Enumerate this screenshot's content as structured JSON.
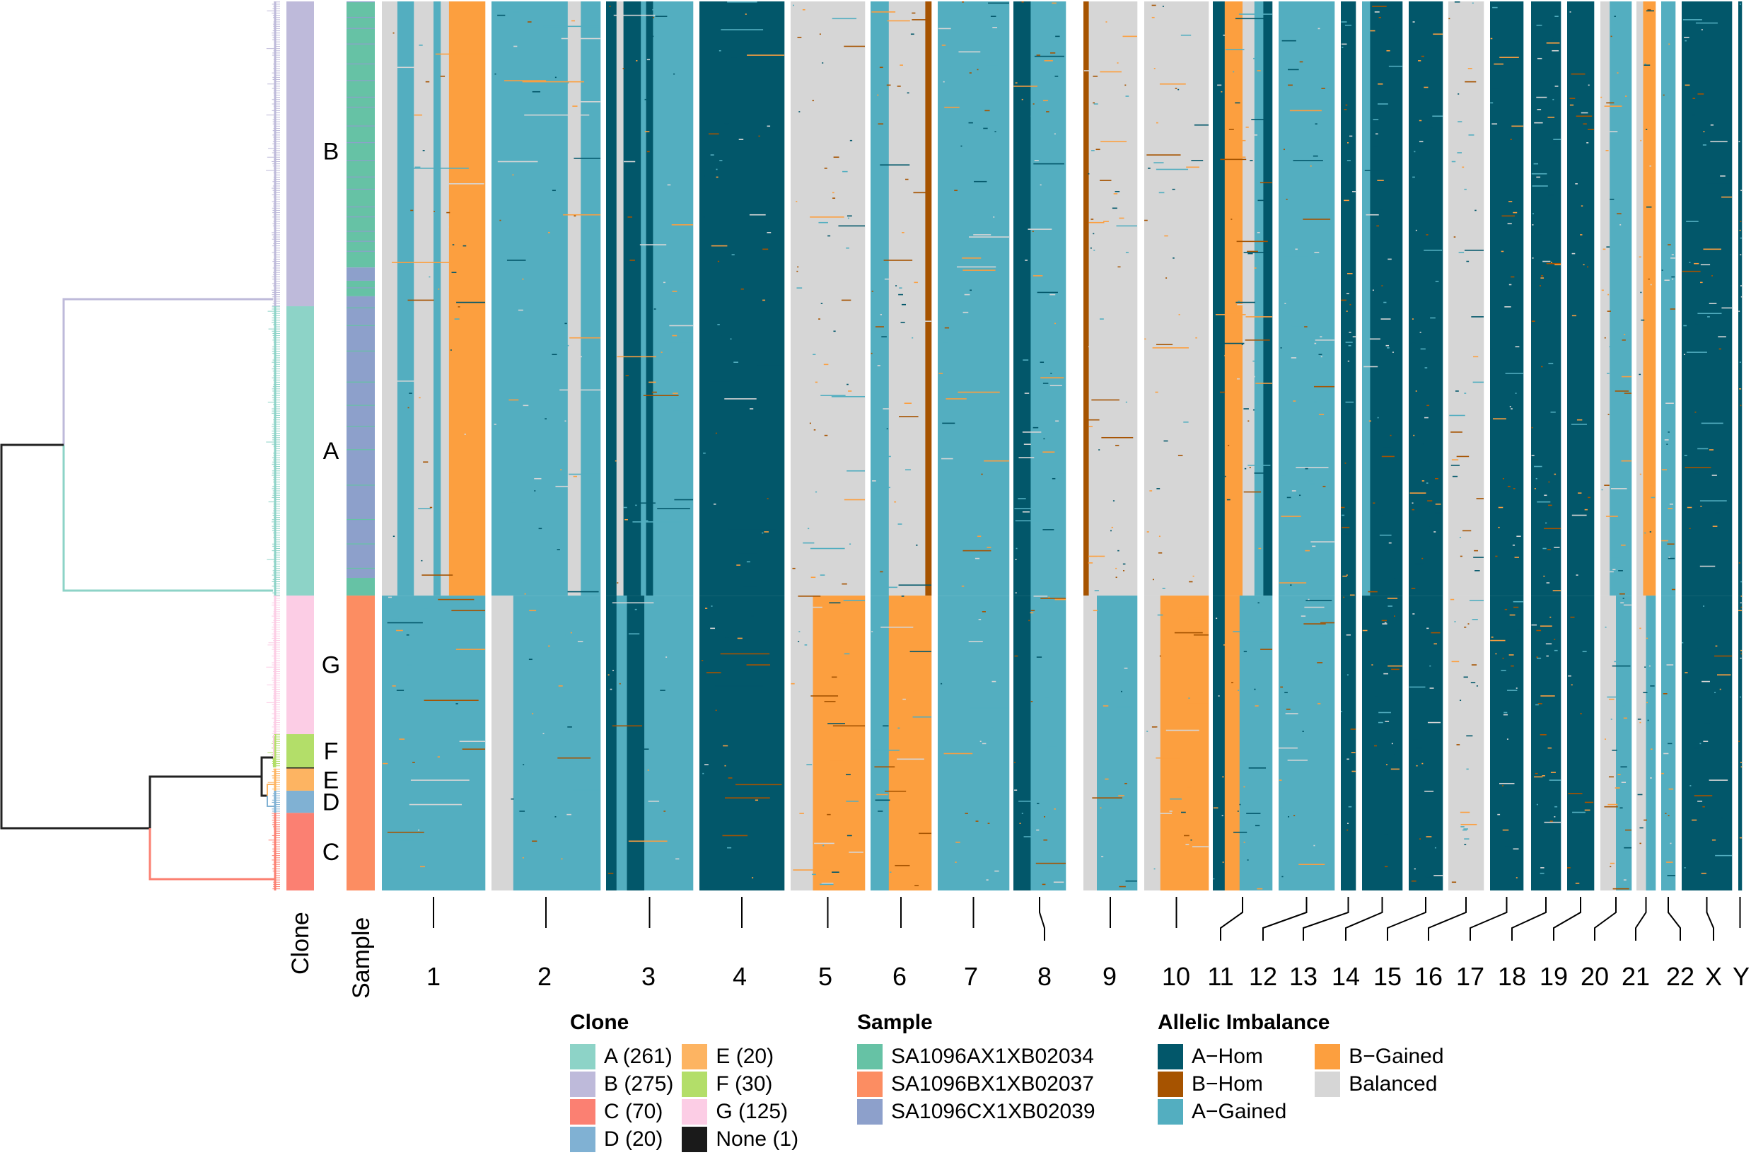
{
  "chart_data": {
    "type": "heatmap",
    "title": "",
    "xlabel": "",
    "ylabel": "",
    "row_annotation_labels": [
      "Clone",
      "Sample"
    ],
    "colors": {
      "A-Hom": "#02576A",
      "B-Hom": "#A65300",
      "A-Gained": "#53AEC0",
      "B-Gained": "#FC9F3F",
      "Balanced": "#D6D6D6"
    },
    "clones": [
      {
        "id": "B",
        "count": 275,
        "color": "#BEBADA",
        "rows": [
          0,
          275
        ]
      },
      {
        "id": "A",
        "count": 261,
        "color": "#8DD3C7",
        "rows": [
          275,
          536
        ]
      },
      {
        "id": "G",
        "count": 125,
        "color": "#FCCDE5",
        "rows": [
          536,
          661
        ]
      },
      {
        "id": "F",
        "count": 30,
        "color": "#B3DE69",
        "rows": [
          661,
          691
        ]
      },
      {
        "id": "None",
        "count": 1,
        "color": "#1A1A1A",
        "rows": [
          691,
          692
        ]
      },
      {
        "id": "E",
        "count": 20,
        "color": "#FDB462",
        "rows": [
          692,
          712
        ]
      },
      {
        "id": "D",
        "count": 20,
        "color": "#80B1D3",
        "rows": [
          712,
          732
        ]
      },
      {
        "id": "C",
        "count": 70,
        "color": "#FB8072",
        "rows": [
          732,
          802
        ]
      }
    ],
    "samples": [
      {
        "name": "SA1096AX1XB02034",
        "color": "#66C2A5"
      },
      {
        "name": "SA1096BX1XB02037",
        "color": "#FC8D62"
      },
      {
        "name": "SA1096CX1XB02039",
        "color": "#8DA0CB"
      }
    ],
    "sample_blocks": [
      {
        "rows": [
          0,
          240
        ],
        "sample": 0
      },
      {
        "rows": [
          240,
          252
        ],
        "sample": 2
      },
      {
        "rows": [
          252,
          266
        ],
        "sample": 0
      },
      {
        "rows": [
          266,
          520
        ],
        "sample": 2
      },
      {
        "rows": [
          520,
          536
        ],
        "sample": 0
      },
      {
        "rows": [
          536,
          802
        ],
        "sample": 1
      }
    ],
    "clone_label_rows": {
      "B": 135,
      "A": 405,
      "G": 598,
      "F": 676,
      "E": 702,
      "D": 722,
      "C": 767
    },
    "chromosomes": [
      "1",
      "2",
      "3",
      "4",
      "5",
      "6",
      "7",
      "8",
      "9",
      "10",
      "11",
      "12",
      "13",
      "14",
      "15",
      "16",
      "17",
      "18",
      "19",
      "20",
      "21",
      "22",
      "X",
      "Y"
    ],
    "chromosome_profiles": {
      "1": {
        "upper": [
          [
            "Balanced",
            0.15
          ],
          [
            "A-Gained",
            0.16
          ],
          [
            "Balanced",
            0.19
          ],
          [
            "A-Gained",
            0.07
          ],
          [
            "Balanced",
            0.08
          ],
          [
            "B-Gained",
            0.35
          ]
        ],
        "lower": [
          [
            "A-Gained",
            1.0
          ]
        ]
      },
      "2": {
        "upper": [
          [
            "A-Gained",
            0.7
          ],
          [
            "Balanced",
            0.12
          ],
          [
            "A-Gained",
            0.18
          ]
        ],
        "lower": [
          [
            "Balanced",
            0.2
          ],
          [
            "A-Gained",
            0.8
          ]
        ]
      },
      "3": {
        "upper": [
          [
            "A-Hom",
            0.12
          ],
          [
            "Balanced",
            0.08
          ],
          [
            "A-Hom",
            0.2
          ],
          [
            "A-Gained",
            0.06
          ],
          [
            "A-Hom",
            0.08
          ],
          [
            "A-Gained",
            0.46
          ]
        ],
        "lower": [
          [
            "A-Hom",
            0.12
          ],
          [
            "A-Gained",
            0.12
          ],
          [
            "A-Hom",
            0.2
          ],
          [
            "A-Gained",
            0.56
          ]
        ]
      },
      "4": {
        "upper": [
          [
            "A-Hom",
            1.0
          ]
        ],
        "lower": [
          [
            "A-Hom",
            1.0
          ]
        ]
      },
      "5": {
        "upper": [
          [
            "Balanced",
            1.0
          ]
        ],
        "lower": [
          [
            "Balanced",
            0.3
          ],
          [
            "B-Gained",
            0.7
          ]
        ]
      },
      "6": {
        "upper": [
          [
            "A-Gained",
            0.3
          ],
          [
            "Balanced",
            0.6
          ],
          [
            "B-Hom",
            0.1
          ]
        ],
        "lower": [
          [
            "A-Gained",
            0.3
          ],
          [
            "B-Gained",
            0.7
          ]
        ]
      },
      "7": {
        "upper": [
          [
            "A-Gained",
            1.0
          ]
        ],
        "lower": [
          [
            "A-Gained",
            1.0
          ]
        ]
      },
      "8": {
        "upper": [
          [
            "A-Hom",
            0.33
          ],
          [
            "A-Gained",
            0.67
          ]
        ],
        "lower": [
          [
            "A-Hom",
            0.33
          ],
          [
            "A-Gained",
            0.67
          ]
        ]
      },
      "9": {
        "upper": [
          [
            "B-Hom",
            0.1
          ],
          [
            "Balanced",
            0.9
          ]
        ],
        "lower": [
          [
            "Balanced",
            0.25
          ],
          [
            "A-Gained",
            0.75
          ]
        ]
      },
      "10": {
        "upper": [
          [
            "Balanced",
            1.0
          ]
        ],
        "lower": [
          [
            "Balanced",
            0.25
          ],
          [
            "B-Gained",
            0.75
          ]
        ]
      },
      "11": {
        "upper": [
          [
            "A-Hom",
            0.2
          ],
          [
            "B-Gained",
            0.3
          ],
          [
            "Balanced",
            0.2
          ],
          [
            "A-Gained",
            0.15
          ],
          [
            "A-Hom",
            0.15
          ]
        ],
        "lower": [
          [
            "A-Hom",
            0.2
          ],
          [
            "B-Gained",
            0.25
          ],
          [
            "A-Gained",
            0.55
          ]
        ]
      },
      "12": {
        "upper": [
          [
            "A-Gained",
            1.0
          ]
        ],
        "lower": [
          [
            "A-Gained",
            1.0
          ]
        ]
      },
      "13": {
        "upper": [
          [
            "A-Hom",
            1.0
          ]
        ],
        "lower": [
          [
            "A-Hom",
            1.0
          ]
        ]
      },
      "14": {
        "upper": [
          [
            "A-Gained",
            0.2
          ],
          [
            "A-Hom",
            0.8
          ]
        ],
        "lower": [
          [
            "A-Hom",
            1.0
          ]
        ]
      },
      "15": {
        "upper": [
          [
            "A-Hom",
            1.0
          ]
        ],
        "lower": [
          [
            "A-Hom",
            1.0
          ]
        ]
      },
      "16": {
        "upper": [
          [
            "Balanced",
            1.0
          ]
        ],
        "lower": [
          [
            "Balanced",
            1.0
          ]
        ]
      },
      "17": {
        "upper": [
          [
            "A-Hom",
            1.0
          ]
        ],
        "lower": [
          [
            "A-Hom",
            1.0
          ]
        ]
      },
      "18": {
        "upper": [
          [
            "A-Hom",
            1.0
          ]
        ],
        "lower": [
          [
            "A-Hom",
            1.0
          ]
        ]
      },
      "19": {
        "upper": [
          [
            "A-Hom",
            1.0
          ]
        ],
        "lower": [
          [
            "A-Hom",
            1.0
          ]
        ]
      },
      "20": {
        "upper": [
          [
            "Balanced",
            0.3
          ],
          [
            "A-Gained",
            0.7
          ]
        ],
        "lower": [
          [
            "Balanced",
            0.5
          ],
          [
            "A-Gained",
            0.5
          ]
        ]
      },
      "21": {
        "upper": [
          [
            "Balanced",
            0.35
          ],
          [
            "B-Gained",
            0.65
          ]
        ],
        "lower": [
          [
            "Balanced",
            0.5
          ],
          [
            "A-Gained",
            0.5
          ]
        ]
      },
      "22": {
        "upper": [
          [
            "A-Gained",
            1.0
          ]
        ],
        "lower": [
          [
            "A-Gained",
            1.0
          ]
        ]
      },
      "X": {
        "upper": [
          [
            "A-Hom",
            1.0
          ]
        ],
        "lower": [
          [
            "A-Hom",
            1.0
          ]
        ]
      },
      "Y": {
        "upper": [
          [
            "A-Hom",
            1.0
          ]
        ],
        "lower": [
          [
            "A-Hom",
            1.0
          ]
        ]
      }
    },
    "profile_split_row": 536
  },
  "annotations": {
    "clone_axis_label": "Clone",
    "sample_axis_label": "Sample"
  },
  "legend": {
    "clone": {
      "title": "Clone",
      "items": [
        {
          "label": "A (261)",
          "color": "#8DD3C7"
        },
        {
          "label": "B (275)",
          "color": "#BEBADA"
        },
        {
          "label": "C (70)",
          "color": "#FB8072"
        },
        {
          "label": "D (20)",
          "color": "#80B1D3"
        },
        {
          "label": "E (20)",
          "color": "#FDB462"
        },
        {
          "label": "F (30)",
          "color": "#B3DE69"
        },
        {
          "label": "G (125)",
          "color": "#FCCDE5"
        },
        {
          "label": "None (1)",
          "color": "#1A1A1A"
        }
      ]
    },
    "sample": {
      "title": "Sample",
      "items": [
        {
          "label": "SA1096AX1XB02034",
          "color": "#66C2A5"
        },
        {
          "label": "SA1096BX1XB02037",
          "color": "#FC8D62"
        },
        {
          "label": "SA1096CX1XB02039",
          "color": "#8DA0CB"
        }
      ]
    },
    "allelic": {
      "title": "Allelic Imbalance",
      "items": [
        {
          "label": "A−Hom",
          "color": "#02576A"
        },
        {
          "label": "B−Hom",
          "color": "#A65300"
        },
        {
          "label": "A−Gained",
          "color": "#53AEC0"
        },
        {
          "label": "B−Gained",
          "color": "#FC9F3F"
        },
        {
          "label": "Balanced",
          "color": "#D6D6D6"
        }
      ]
    }
  }
}
